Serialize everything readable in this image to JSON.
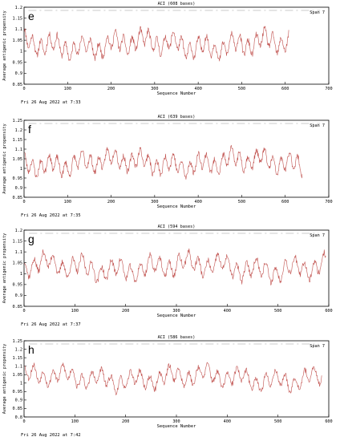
{
  "chart_data": [
    {
      "type": "line",
      "panel_letter": "e",
      "title": "ACI (608 bases)",
      "span_label": "Span 7",
      "xlabel": "Sequence Number",
      "ylabel": "Average antigenic propensity",
      "xlim": [
        0,
        700
      ],
      "ylim": [
        0.85,
        1.2
      ],
      "xticks": [
        "0",
        "100",
        "200",
        "300",
        "400",
        "500",
        "600",
        "700"
      ],
      "yticks": [
        "0.85",
        "0.9",
        "0.95",
        "1",
        "1.05",
        "1.1",
        "1.15",
        "1.2"
      ],
      "footer": "Fri 26 Aug 2022 at 7:33",
      "seq_length": 608,
      "mean": 1.03,
      "amp": 0.065,
      "min": 0.9,
      "max": 1.18,
      "seed": 11,
      "color": "#c0504d"
    },
    {
      "type": "line",
      "panel_letter": "f",
      "title": "ACI (639 bases)",
      "span_label": "Span 7",
      "xlabel": "Sequence Number",
      "ylabel": "Average antigenic propensity",
      "xlim": [
        0,
        700
      ],
      "ylim": [
        0.85,
        1.25
      ],
      "xticks": [
        "0",
        "100",
        "200",
        "300",
        "400",
        "500",
        "600",
        "700"
      ],
      "yticks": [
        "0.85",
        "0.9",
        "0.95",
        "1",
        "1.05",
        "1.1",
        "1.15",
        "1.2",
        "1.25"
      ],
      "footer": "Fri 26 Aug 2022 at 7:35",
      "seq_length": 639,
      "mean": 1.03,
      "amp": 0.07,
      "min": 0.87,
      "max": 1.23,
      "seed": 23,
      "color": "#c0504d"
    },
    {
      "type": "line",
      "panel_letter": "g",
      "title": "ACI (594 bases)",
      "span_label": "Span 7",
      "xlabel": "Sequence Number",
      "ylabel": "Average antigenic propensity",
      "xlim": [
        0,
        600
      ],
      "ylim": [
        0.85,
        1.2
      ],
      "xticks": [
        "0",
        "100",
        "200",
        "300",
        "400",
        "500",
        "600"
      ],
      "yticks": [
        "0.85",
        "0.9",
        "0.95",
        "1",
        "1.05",
        "1.1",
        "1.15",
        "1.2"
      ],
      "footer": "Fri 26 Aug 2022 at 7:37",
      "seq_length": 594,
      "mean": 1.03,
      "amp": 0.065,
      "min": 0.88,
      "max": 1.18,
      "seed": 37,
      "color": "#c0504d"
    },
    {
      "type": "line",
      "panel_letter": "h",
      "title": "ACI (586 bases)",
      "span_label": "Span 7",
      "xlabel": "Sequence Number",
      "ylabel": "Average antigenic propensity",
      "xlim": [
        0,
        600
      ],
      "ylim": [
        0.8,
        1.25
      ],
      "xticks": [
        "0",
        "100",
        "200",
        "300",
        "400",
        "500",
        "600"
      ],
      "yticks": [
        "0.8",
        "0.85",
        "0.9",
        "0.95",
        "1",
        "1.05",
        "1.1",
        "1.15",
        "1.2",
        "1.25"
      ],
      "footer": "Fri 26 Aug 2022 at 7:42",
      "seq_length": 586,
      "mean": 1.03,
      "amp": 0.075,
      "min": 0.84,
      "max": 1.23,
      "seed": 53,
      "color": "#c0504d"
    }
  ]
}
